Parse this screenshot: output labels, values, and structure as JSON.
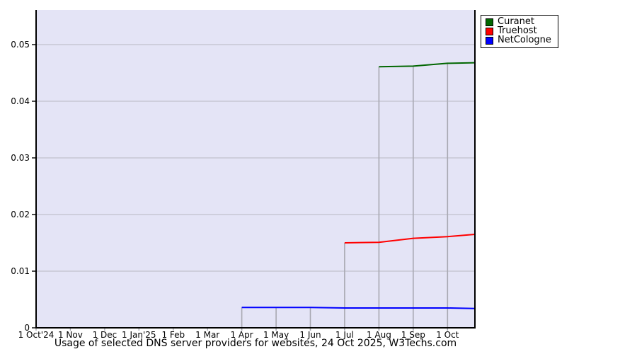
{
  "chart_data": {
    "type": "line",
    "title": "Usage of selected DNS server providers for websites, 24 Oct 2025, W3Techs.com",
    "xlabel": "",
    "ylabel": "",
    "x_tick_labels": [
      "1 Oct'24",
      "1 Nov",
      "1 Dec",
      "1 Jan'25",
      "1 Feb",
      "1 Mar",
      "1 Apr",
      "1 May",
      "1 Jun",
      "1 Jul",
      "1 Aug",
      "1 Sep",
      "1 Oct"
    ],
    "y_tick_labels": [
      "0",
      "0.01",
      "0.02",
      "0.03",
      "0.04",
      "0.05"
    ],
    "ylim": [
      0,
      0.0561
    ],
    "x_range_months": 12.8,
    "grid": true,
    "legend_position": "top-right-outside",
    "series": [
      {
        "name": "Curanet",
        "color": "#006600",
        "points": [
          [
            "2025-08-01",
            0.0461
          ],
          [
            "2025-09-01",
            0.0462
          ],
          [
            "2025-10-01",
            0.0467
          ],
          [
            "2025-10-24",
            0.0468
          ]
        ]
      },
      {
        "name": "Truehost",
        "color": "#ff0000",
        "points": [
          [
            "2025-07-01",
            0.015
          ],
          [
            "2025-08-01",
            0.0151
          ],
          [
            "2025-09-01",
            0.0158
          ],
          [
            "2025-10-01",
            0.0161
          ],
          [
            "2025-10-24",
            0.0165
          ]
        ]
      },
      {
        "name": "NetCologne",
        "color": "#0000ff",
        "points": [
          [
            "2025-04-01",
            0.0036
          ],
          [
            "2025-05-01",
            0.0036
          ],
          [
            "2025-06-01",
            0.0036
          ],
          [
            "2025-07-01",
            0.0035
          ],
          [
            "2025-08-01",
            0.0035
          ],
          [
            "2025-09-01",
            0.0035
          ],
          [
            "2025-10-01",
            0.0035
          ],
          [
            "2025-10-24",
            0.0034
          ]
        ]
      }
    ],
    "colors": {
      "plot_background": "#e4e4f6",
      "grid_line": "#b9b9c2",
      "grid_line_vertical": "#a8a8b2",
      "axis": "#000000"
    }
  }
}
